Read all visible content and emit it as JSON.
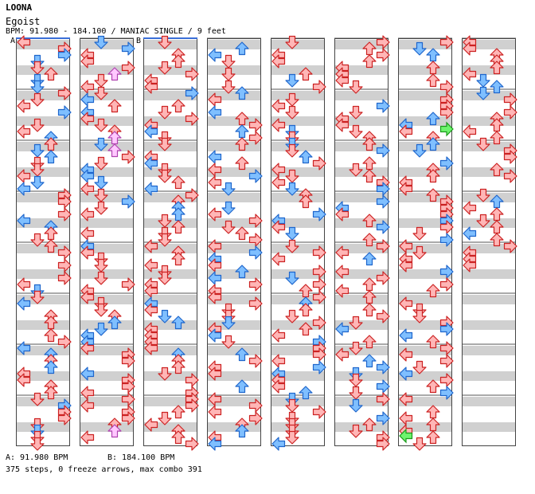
{
  "header": {
    "artist": "LOONA",
    "title": "Egoist",
    "info": "BPM: 91.980 - 184.100 / MANIAC SINGLE / 9 feet"
  },
  "markers": {
    "a": "A",
    "b": "B"
  },
  "footer": {
    "bpm_a": "A: 91.980 BPM",
    "bpm_b": "B: 184.100 BPM",
    "stats": "375 steps, 0 freeze arrows, max combo 391"
  },
  "colors": {
    "red_fill": "#ffb6b6",
    "red_stroke": "#cc2222",
    "blue_fill": "#7fbfff",
    "blue_stroke": "#1f66cc",
    "pink_fill": "#ffc8ff",
    "pink_stroke": "#b044b0",
    "green_fill": "#6ef46e",
    "green_stroke": "#1a9a1a",
    "stripe": "#d0d0d0",
    "bpm_line": "#3a6fd8"
  },
  "chart_data": {
    "type": "step-chart",
    "mode": "MANIAC SINGLE",
    "feet": 9,
    "bpm": [
      91.98,
      184.1
    ],
    "steps": 375,
    "freeze_arrows": 0,
    "max_combo": 391,
    "columns": 8,
    "measures_per_column": 8
  }
}
